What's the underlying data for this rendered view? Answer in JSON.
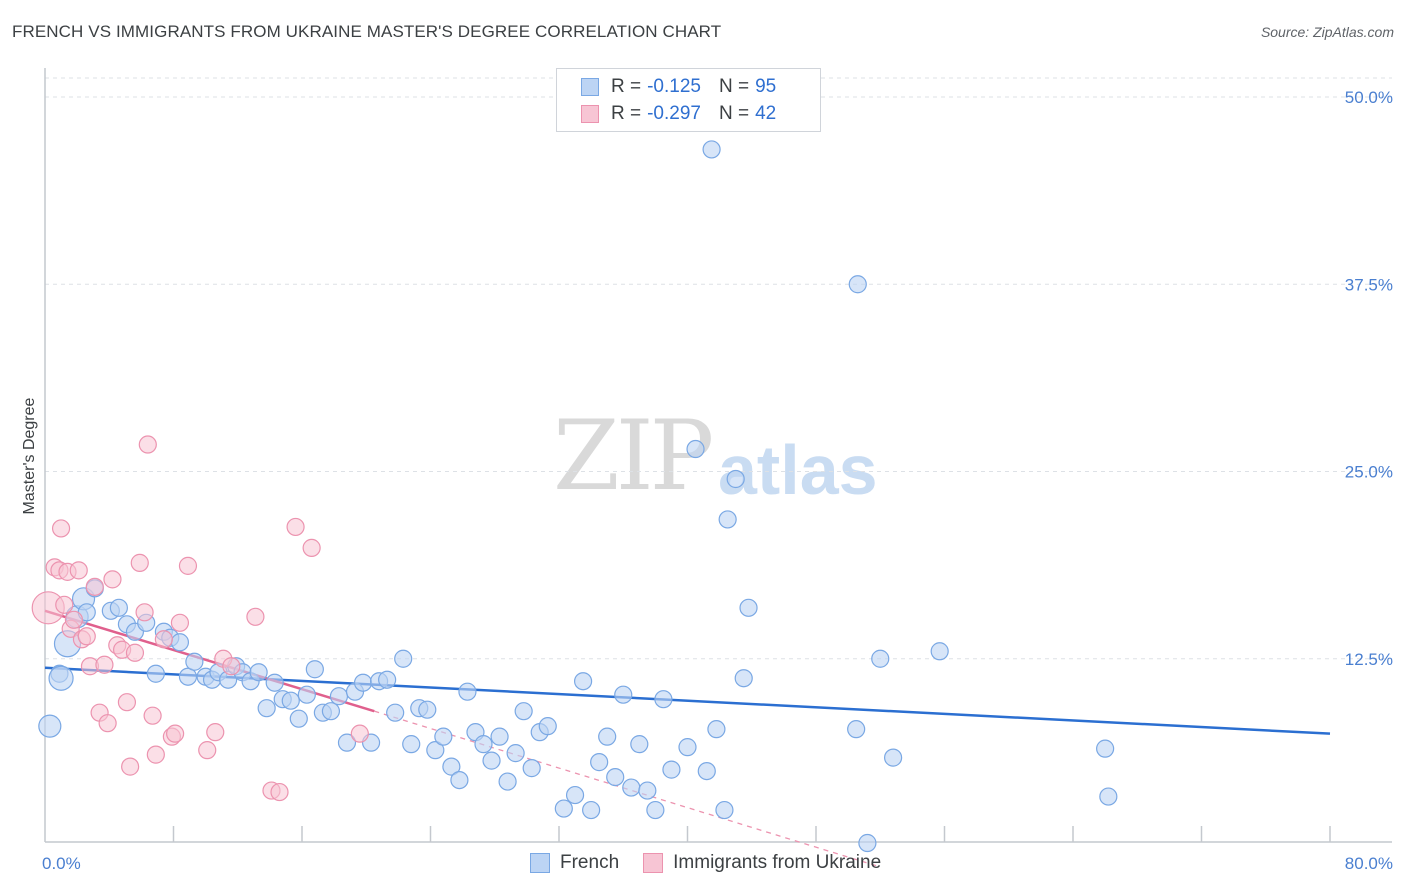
{
  "title": "FRENCH VS IMMIGRANTS FROM UKRAINE MASTER'S DEGREE CORRELATION CHART",
  "source": "Source: ZipAtlas.com",
  "watermark": {
    "zip": "ZIP",
    "atlas": "atlas"
  },
  "legend_top": [
    {
      "r_label": "R =",
      "r_value": "-0.125",
      "n_label": "N =",
      "n_value": "95"
    },
    {
      "r_label": "R =",
      "r_value": "-0.297",
      "n_label": "N =",
      "n_value": "42"
    }
  ],
  "legend_bottom": [
    "French",
    "Immigrants from Ukraine"
  ],
  "colors": {
    "blue_fill": "#bcd4f4",
    "blue_stroke": "#7aa8e4",
    "blue_line": "#2b6fd1",
    "pink_fill": "#f7c5d4",
    "pink_stroke": "#ec93af",
    "pink_line": "#e0608d",
    "grid": "#dde1e6",
    "axis_text": "#4a7fd0"
  },
  "chart_data": {
    "type": "scatter",
    "title": "FRENCH VS IMMIGRANTS FROM UKRAINE MASTER'S DEGREE CORRELATION CHART",
    "xlabel": "",
    "ylabel": "Master's Degree",
    "xlim": [
      0,
      80
    ],
    "ylim": [
      0,
      50
    ],
    "x_tick_labels": [
      "0.0%",
      "80.0%"
    ],
    "y_tick_labels": [
      "12.5%",
      "25.0%",
      "37.5%",
      "50.0%"
    ],
    "y_ticks": [
      12.5,
      25.0,
      37.5,
      50.0
    ],
    "series": [
      {
        "name": "French",
        "r": -0.125,
        "n": 95,
        "trend": {
          "x": [
            0,
            80
          ],
          "y": [
            11.9,
            7.5
          ]
        },
        "points": [
          [
            41.5,
            46.5
          ],
          [
            50.6,
            37.5
          ],
          [
            40.5,
            26.5
          ],
          [
            43.0,
            24.5
          ],
          [
            42.5,
            21.8
          ],
          [
            43.8,
            15.9
          ],
          [
            52.0,
            12.5
          ],
          [
            55.7,
            13.0
          ],
          [
            43.5,
            11.2
          ],
          [
            41.8,
            7.8
          ],
          [
            50.5,
            7.8
          ],
          [
            52.8,
            5.9
          ],
          [
            66.0,
            6.5
          ],
          [
            66.2,
            3.3
          ],
          [
            51.2,
            0.2
          ],
          [
            0.3,
            8.0
          ],
          [
            0.9,
            11.5
          ],
          [
            1.4,
            13.5
          ],
          [
            2.0,
            15.3
          ],
          [
            2.4,
            16.5
          ],
          [
            3.1,
            17.2
          ],
          [
            4.1,
            15.7
          ],
          [
            5.1,
            14.8
          ],
          [
            5.6,
            14.3
          ],
          [
            6.3,
            14.9
          ],
          [
            6.9,
            11.5
          ],
          [
            7.4,
            14.3
          ],
          [
            7.8,
            13.9
          ],
          [
            8.4,
            13.6
          ],
          [
            8.9,
            11.3
          ],
          [
            9.3,
            12.3
          ],
          [
            10.0,
            11.3
          ],
          [
            10.4,
            11.1
          ],
          [
            10.8,
            11.6
          ],
          [
            11.4,
            11.1
          ],
          [
            11.9,
            12.0
          ],
          [
            12.3,
            11.6
          ],
          [
            12.8,
            11.0
          ],
          [
            13.3,
            11.6
          ],
          [
            13.8,
            9.2
          ],
          [
            14.3,
            10.9
          ],
          [
            14.8,
            9.8
          ],
          [
            15.3,
            9.7
          ],
          [
            15.8,
            8.5
          ],
          [
            16.3,
            10.1
          ],
          [
            16.8,
            11.8
          ],
          [
            17.3,
            8.9
          ],
          [
            17.8,
            9.0
          ],
          [
            18.3,
            10.0
          ],
          [
            18.8,
            6.9
          ],
          [
            19.3,
            10.3
          ],
          [
            19.8,
            10.9
          ],
          [
            20.3,
            6.9
          ],
          [
            20.8,
            11.0
          ],
          [
            21.3,
            11.1
          ],
          [
            21.8,
            8.9
          ],
          [
            22.3,
            12.5
          ],
          [
            22.8,
            6.8
          ],
          [
            23.3,
            9.2
          ],
          [
            23.8,
            9.1
          ],
          [
            24.3,
            6.4
          ],
          [
            24.8,
            7.3
          ],
          [
            25.3,
            5.3
          ],
          [
            25.8,
            4.4
          ],
          [
            26.3,
            10.3
          ],
          [
            26.8,
            7.6
          ],
          [
            27.3,
            6.8
          ],
          [
            27.8,
            5.7
          ],
          [
            28.3,
            7.3
          ],
          [
            28.8,
            4.3
          ],
          [
            29.3,
            6.2
          ],
          [
            29.8,
            9.0
          ],
          [
            30.3,
            5.2
          ],
          [
            30.8,
            7.6
          ],
          [
            31.3,
            8.0
          ],
          [
            32.3,
            2.5
          ],
          [
            33.0,
            3.4
          ],
          [
            33.5,
            11.0
          ],
          [
            34.0,
            2.4
          ],
          [
            34.5,
            5.6
          ],
          [
            35.0,
            7.3
          ],
          [
            35.5,
            4.6
          ],
          [
            36.0,
            10.1
          ],
          [
            36.5,
            3.9
          ],
          [
            37.0,
            6.8
          ],
          [
            37.5,
            3.7
          ],
          [
            38.0,
            2.4
          ],
          [
            38.5,
            9.8
          ],
          [
            39.0,
            5.1
          ],
          [
            40.0,
            6.6
          ],
          [
            41.2,
            5.0
          ],
          [
            42.3,
            2.4
          ],
          [
            1.0,
            11.2
          ],
          [
            2.6,
            15.6
          ],
          [
            4.6,
            15.9
          ]
        ]
      },
      {
        "name": "Immigrants from Ukraine",
        "r": -0.297,
        "n": 42,
        "trend": {
          "x": [
            0,
            20.5
          ],
          "y": [
            15.7,
            9.0
          ]
        },
        "trend_dashed": {
          "x": [
            20.5,
            52
          ],
          "y": [
            9.0,
            -1.4
          ]
        },
        "points": [
          [
            0.2,
            15.9
          ],
          [
            0.6,
            18.6
          ],
          [
            0.9,
            18.4
          ],
          [
            1.0,
            21.2
          ],
          [
            1.2,
            16.1
          ],
          [
            1.4,
            18.3
          ],
          [
            1.6,
            14.5
          ],
          [
            1.8,
            15.1
          ],
          [
            2.1,
            18.4
          ],
          [
            2.3,
            13.8
          ],
          [
            2.6,
            14.0
          ],
          [
            2.8,
            12.0
          ],
          [
            3.1,
            17.3
          ],
          [
            3.4,
            8.9
          ],
          [
            3.7,
            12.1
          ],
          [
            3.9,
            8.2
          ],
          [
            4.2,
            17.8
          ],
          [
            4.5,
            13.4
          ],
          [
            4.8,
            13.1
          ],
          [
            5.1,
            9.6
          ],
          [
            5.3,
            5.3
          ],
          [
            5.6,
            12.9
          ],
          [
            5.9,
            18.9
          ],
          [
            6.2,
            15.6
          ],
          [
            6.4,
            26.8
          ],
          [
            6.7,
            8.7
          ],
          [
            6.9,
            6.1
          ],
          [
            7.4,
            13.8
          ],
          [
            7.9,
            7.3
          ],
          [
            8.1,
            7.5
          ],
          [
            8.4,
            14.9
          ],
          [
            8.9,
            18.7
          ],
          [
            10.1,
            6.4
          ],
          [
            10.6,
            7.6
          ],
          [
            11.1,
            12.5
          ],
          [
            11.6,
            12.0
          ],
          [
            13.1,
            15.3
          ],
          [
            14.1,
            3.7
          ],
          [
            14.6,
            3.6
          ],
          [
            15.6,
            21.3
          ],
          [
            16.6,
            19.9
          ],
          [
            19.6,
            7.5
          ]
        ]
      }
    ]
  }
}
